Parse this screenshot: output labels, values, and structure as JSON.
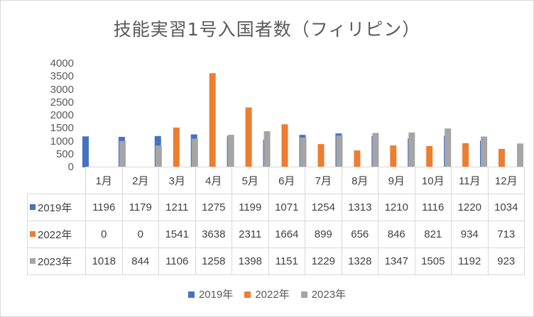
{
  "chart_data": {
    "type": "bar",
    "title": "技能実習1号入国者数（フィリピン）",
    "categories": [
      "1月",
      "2月",
      "3月",
      "4月",
      "5月",
      "6月",
      "7月",
      "8月",
      "9月",
      "10月",
      "11月",
      "12月"
    ],
    "series": [
      {
        "name": "2019年",
        "color": "#4472c4",
        "values": [
          1196,
          1179,
          1211,
          1275,
          1199,
          1071,
          1254,
          1313,
          1210,
          1116,
          1220,
          1034
        ]
      },
      {
        "name": "2022年",
        "color": "#ed7d31",
        "values": [
          0,
          0,
          1541,
          3638,
          2311,
          1664,
          899,
          656,
          846,
          821,
          934,
          713
        ]
      },
      {
        "name": "2023年",
        "color": "#a5a5a5",
        "values": [
          1018,
          844,
          1106,
          1258,
          1398,
          1151,
          1229,
          1328,
          1347,
          1505,
          1192,
          923
        ]
      }
    ],
    "ylim": [
      0,
      4000
    ],
    "yticks": [
      0,
      500,
      1000,
      1500,
      2000,
      2500,
      3000,
      3500,
      4000
    ],
    "xlabel": "",
    "ylabel": "",
    "legend": "bottom",
    "data_table": true
  }
}
